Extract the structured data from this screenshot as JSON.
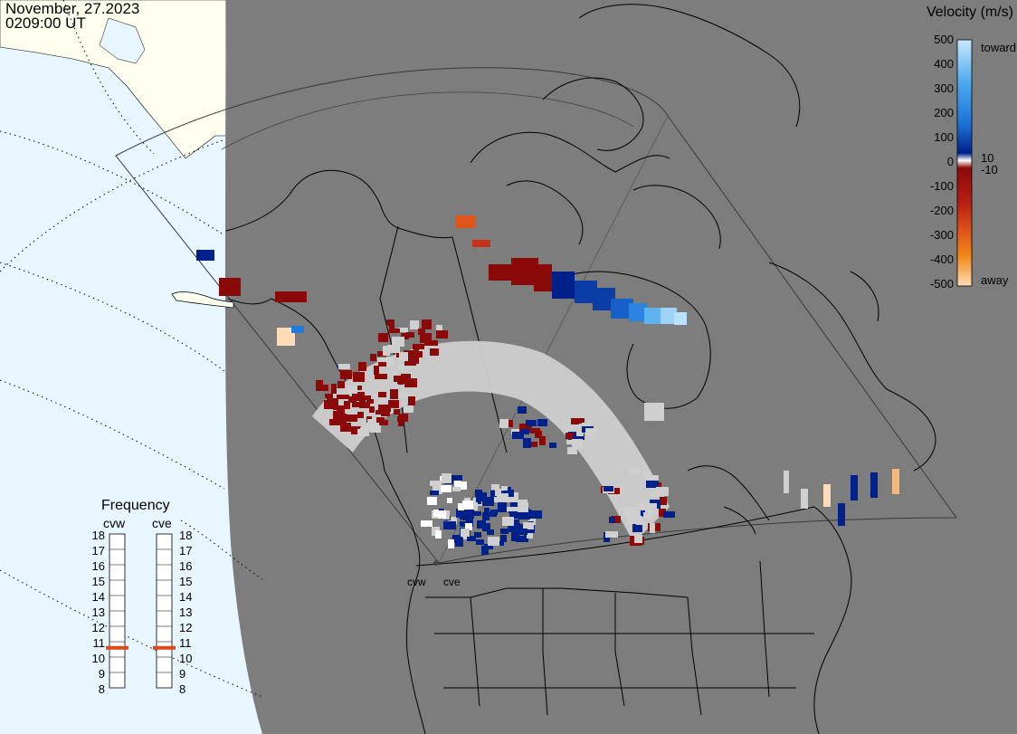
{
  "header": {
    "date": "November, 27.2023",
    "time": "0209:00 UT"
  },
  "colorbar": {
    "title": "Velocity (m/s)",
    "ticks": [
      "500",
      "400",
      "300",
      "200",
      "100",
      "10",
      "0",
      "-10",
      "-100",
      "-200",
      "-300",
      "-400",
      "-500"
    ],
    "toward_label": "toward",
    "away_label": "away",
    "colors": {
      "toward_max": "#c8e8ff",
      "toward_mid": "#1a6fd4",
      "toward_min": "#00208a",
      "zero": "#ffffff",
      "away_min": "#8a0a0a",
      "away_mid": "#e0561a",
      "away_max": "#ffdcb8"
    }
  },
  "frequency_panel": {
    "title": "Frequency",
    "radars": [
      {
        "code": "cvw",
        "frequency_mhz": 11
      },
      {
        "code": "cve",
        "frequency_mhz": 11
      }
    ],
    "scale_values": [
      "18",
      "17",
      "16",
      "15",
      "14",
      "13",
      "12",
      "11",
      "10",
      "9",
      "8"
    ],
    "marker_color": "#e04a1a"
  },
  "map": {
    "radar_site_labels": [
      "cvw",
      "cve"
    ],
    "colors": {
      "night": "#7d7d7d",
      "day_ocean": "#e8f6ff",
      "day_land": "#fffff0",
      "ground_scatter": "#cfcfcf",
      "coastline": "#000000"
    }
  }
}
